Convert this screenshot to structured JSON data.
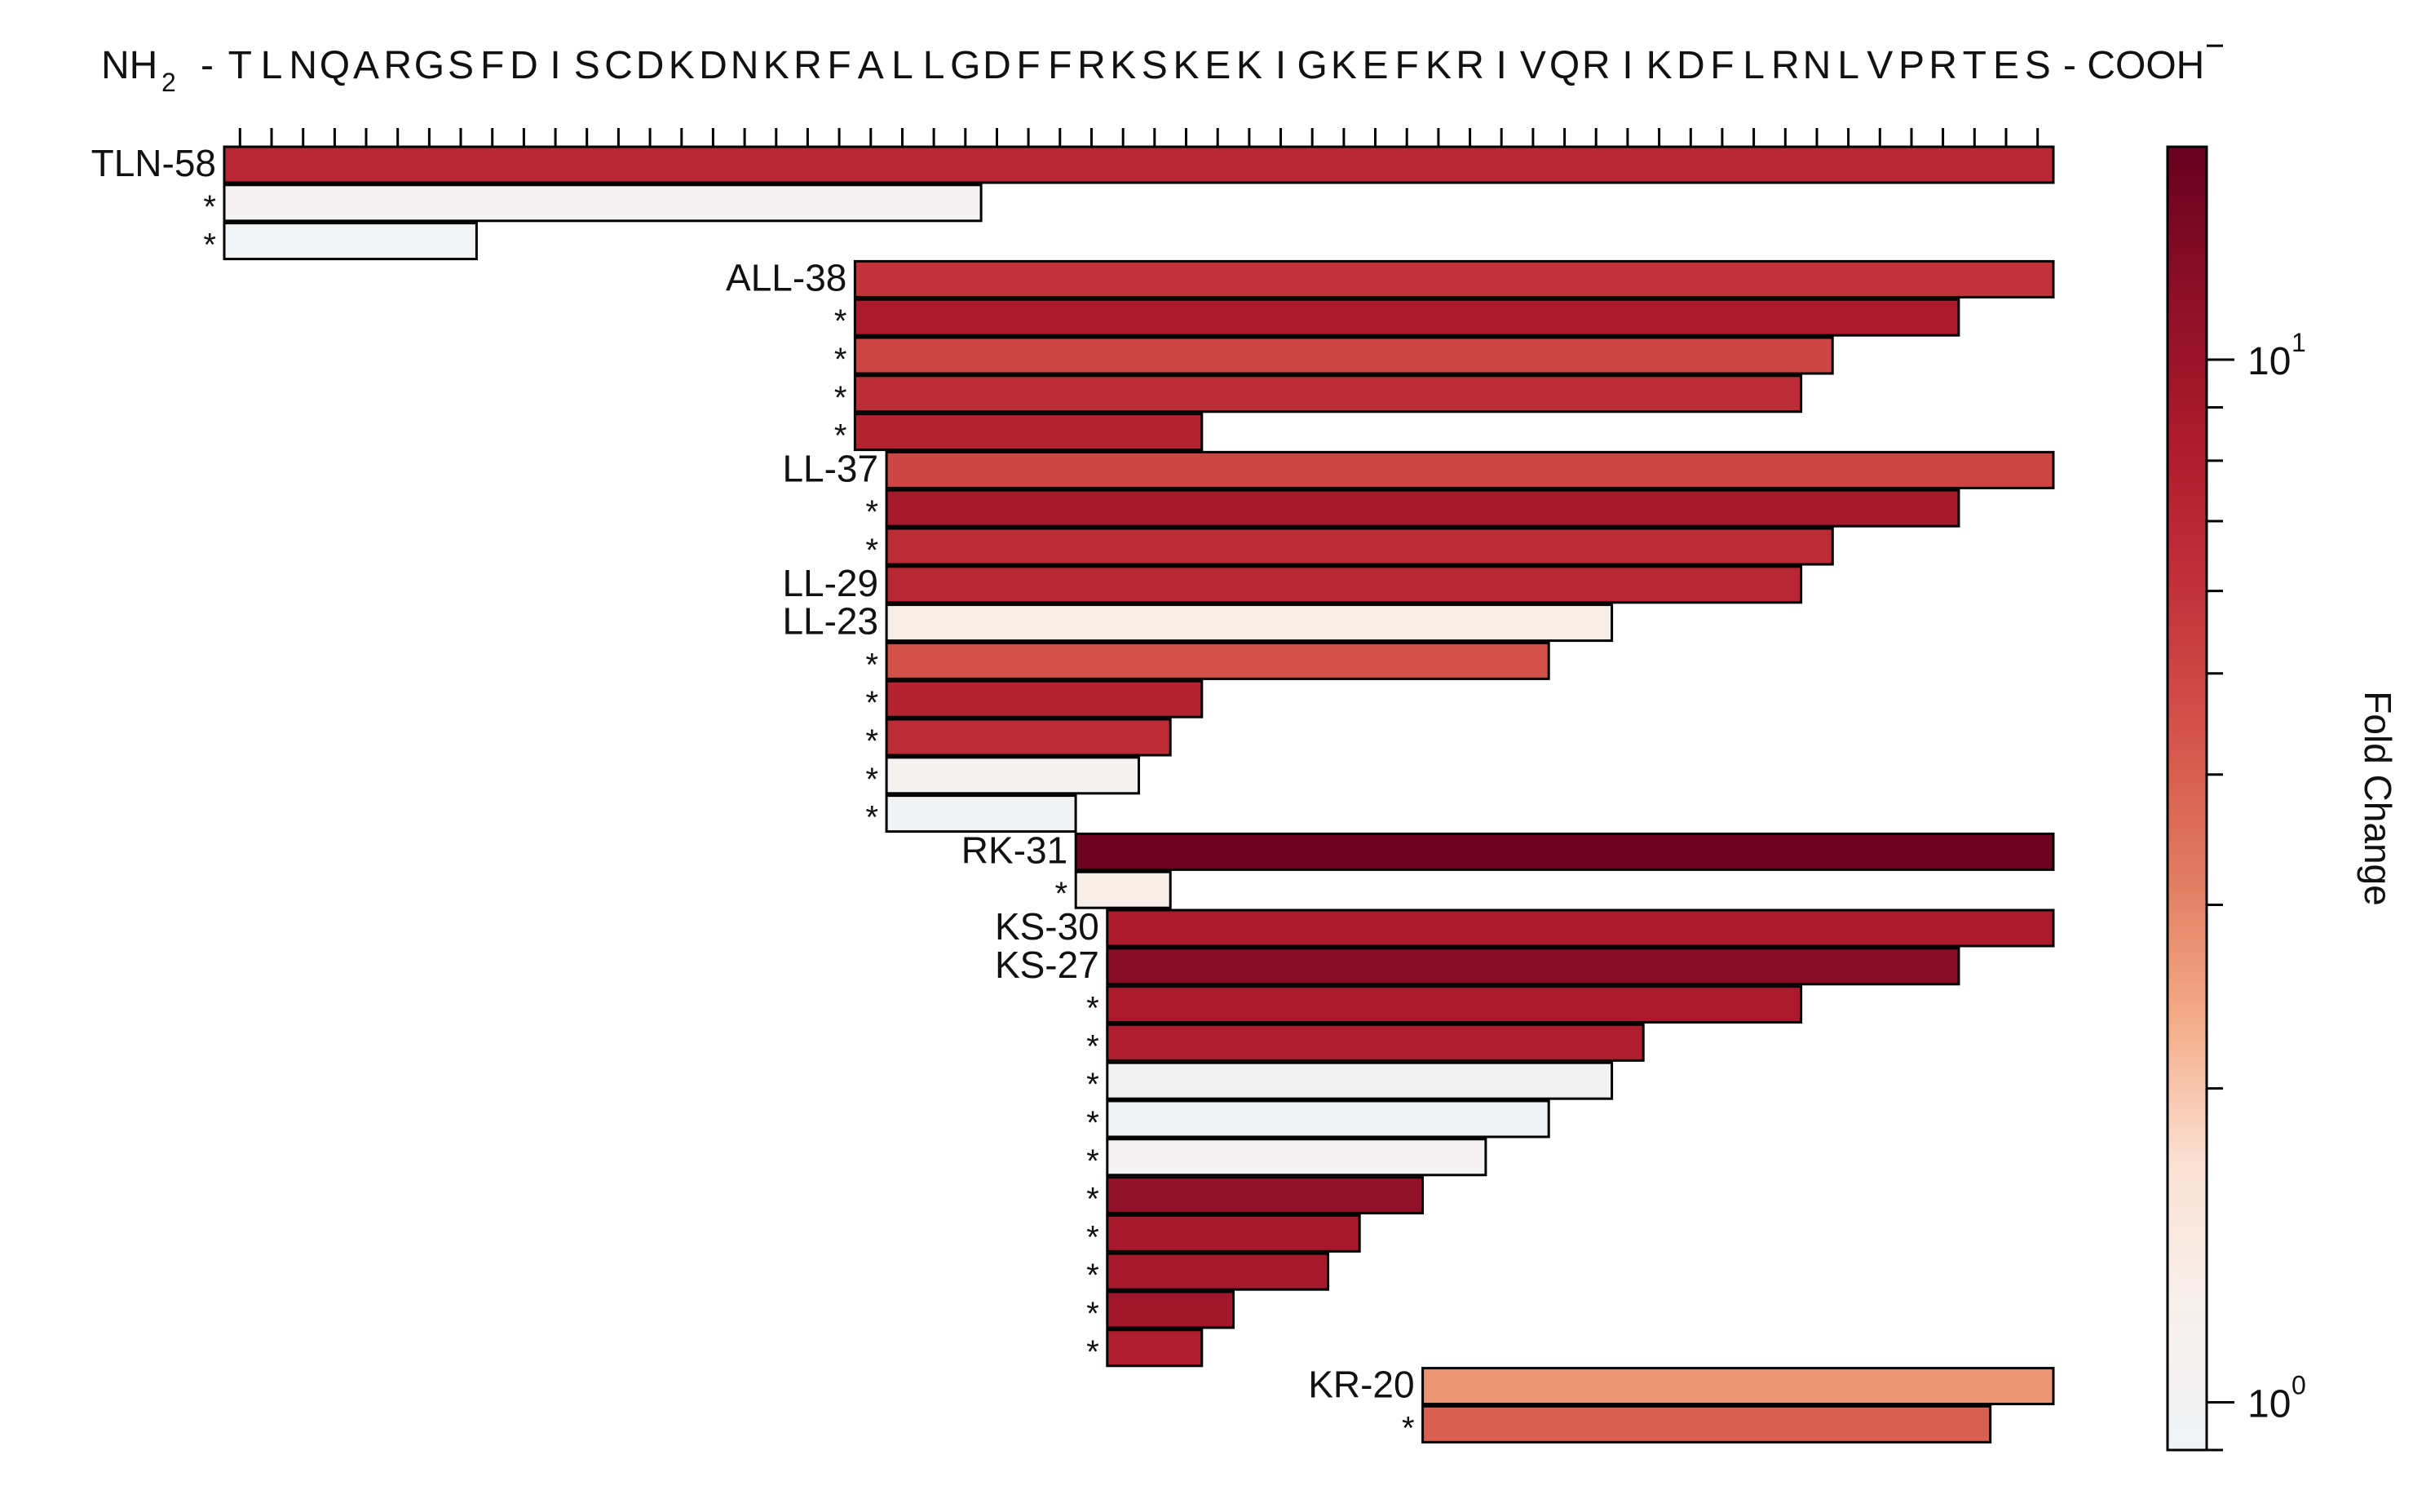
{
  "chart_data": {
    "type": "bar",
    "sequence": {
      "prefix": "NH",
      "prefix_sub": "2",
      "prefix_dash": "-",
      "residues": "TLNQARGSFDISCDKDNKRFALLGDFFRKSKEKIGKEFKRIVQRIKDFLRNLVPRTES",
      "suffix": "- COOH"
    },
    "x_unit": "residue position",
    "xlim": [
      1,
      58
    ],
    "colorbar": {
      "label": "Fold Change",
      "scale": "log",
      "range": [
        0.9,
        16
      ],
      "tick_labels": [
        {
          "value": 1,
          "base": "10",
          "exp": "0"
        },
        {
          "value": 10,
          "base": "10",
          "exp": "1"
        }
      ],
      "minor_ticks": [
        0.9,
        2,
        3,
        4,
        5,
        6,
        7,
        8,
        9,
        20
      ],
      "colors": [
        "#f1f4f7",
        "#f7f0ec",
        "#fbe0d2",
        "#f4aa86",
        "#e07a5f",
        "#d4514a",
        "#c0303a",
        "#ac1a2c",
        "#8c0f27",
        "#67001f"
      ]
    },
    "bars": [
      {
        "label": "TLN-58",
        "start": 1,
        "end": 58,
        "fold_change": 7.0
      },
      {
        "label": "*",
        "start": 1,
        "end": 24,
        "fold_change": 1.05
      },
      {
        "label": "*",
        "start": 1,
        "end": 8,
        "fold_change": 0.93
      },
      {
        "label": "ALL-38",
        "start": 21,
        "end": 58,
        "fold_change": 6.0
      },
      {
        "label": "*",
        "start": 21,
        "end": 55,
        "fold_change": 8.5
      },
      {
        "label": "*",
        "start": 21,
        "end": 51,
        "fold_change": 5.0
      },
      {
        "label": "*",
        "start": 21,
        "end": 50,
        "fold_change": 6.5
      },
      {
        "label": "*",
        "start": 21,
        "end": 31,
        "fold_change": 7.5
      },
      {
        "label": "LL-37",
        "start": 22,
        "end": 58,
        "fold_change": 5.0
      },
      {
        "label": "*",
        "start": 22,
        "end": 55,
        "fold_change": 9.0
      },
      {
        "label": "*",
        "start": 22,
        "end": 51,
        "fold_change": 6.5
      },
      {
        "label": "LL-29",
        "start": 22,
        "end": 50,
        "fold_change": 7.0
      },
      {
        "label": "LL-23",
        "start": 22,
        "end": 44,
        "fold_change": 1.3
      },
      {
        "label": "*",
        "start": 22,
        "end": 42,
        "fold_change": 4.5
      },
      {
        "label": "*",
        "start": 22,
        "end": 31,
        "fold_change": 7.5
      },
      {
        "label": "*",
        "start": 22,
        "end": 30,
        "fold_change": 6.5
      },
      {
        "label": "*",
        "start": 22,
        "end": 29,
        "fold_change": 1.1
      },
      {
        "label": "*",
        "start": 22,
        "end": 27,
        "fold_change": 0.95
      },
      {
        "label": "RK-31",
        "start": 28,
        "end": 58,
        "fold_change": 15.0
      },
      {
        "label": "*",
        "start": 28,
        "end": 30,
        "fold_change": 1.3
      },
      {
        "label": "KS-30",
        "start": 29,
        "end": 58,
        "fold_change": 8.5
      },
      {
        "label": "KS-27",
        "start": 29,
        "end": 55,
        "fold_change": 12.0
      },
      {
        "label": "*",
        "start": 29,
        "end": 50,
        "fold_change": 8.5
      },
      {
        "label": "*",
        "start": 29,
        "end": 45,
        "fold_change": 8.0
      },
      {
        "label": "*",
        "start": 29,
        "end": 44,
        "fold_change": 1.02
      },
      {
        "label": "*",
        "start": 29,
        "end": 42,
        "fold_change": 0.97
      },
      {
        "label": "*",
        "start": 29,
        "end": 40,
        "fold_change": 1.05
      },
      {
        "label": "*",
        "start": 29,
        "end": 38,
        "fold_change": 11.0
      },
      {
        "label": "*",
        "start": 29,
        "end": 36,
        "fold_change": 9.0
      },
      {
        "label": "*",
        "start": 29,
        "end": 35,
        "fold_change": 9.0
      },
      {
        "label": "*",
        "start": 29,
        "end": 32,
        "fold_change": 9.5
      },
      {
        "label": "*",
        "start": 29,
        "end": 31,
        "fold_change": 8.0
      },
      {
        "label": "KR-20",
        "start": 39,
        "end": 58,
        "fold_change": 2.7
      },
      {
        "label": "*",
        "start": 39,
        "end": 56,
        "fold_change": 4.0
      }
    ]
  }
}
